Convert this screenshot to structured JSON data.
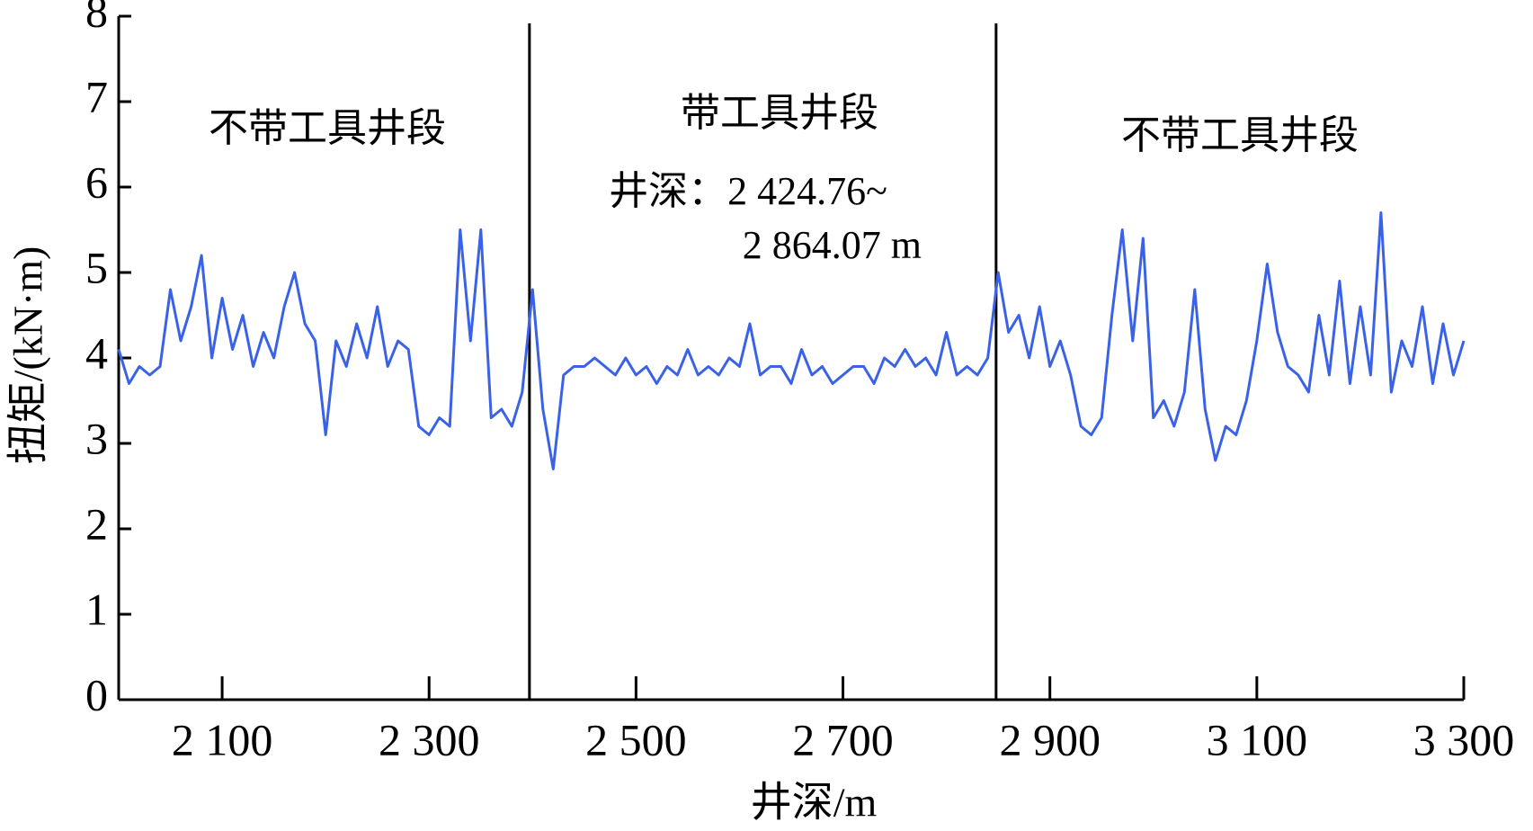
{
  "chart_data": {
    "type": "line",
    "xlabel": "井深/m",
    "ylabel": "扭矩/(kN·m)",
    "annotations": [
      "不带工具井段",
      "带工具井段",
      "井深：2 424.76~",
      "2 864.07 m",
      "不带工具井段"
    ],
    "dividers": [
      2397,
      2848
    ],
    "xlim": [
      2000,
      3300
    ],
    "ylim": [
      0,
      8
    ],
    "xticks": [
      {
        "value": 2100,
        "label": "2 100"
      },
      {
        "value": 2300,
        "label": "2 300"
      },
      {
        "value": 2500,
        "label": "2 500"
      },
      {
        "value": 2700,
        "label": "2 700"
      },
      {
        "value": 2900,
        "label": "2 900"
      },
      {
        "value": 3100,
        "label": "3 100"
      },
      {
        "value": 3300,
        "label": "3 300"
      }
    ],
    "yticks": [
      0,
      1,
      2,
      3,
      4,
      5,
      6,
      7,
      8
    ],
    "x": [
      2000,
      2010,
      2020,
      2030,
      2040,
      2050,
      2060,
      2070,
      2080,
      2090,
      2100,
      2110,
      2120,
      2130,
      2140,
      2150,
      2160,
      2170,
      2180,
      2190,
      2200,
      2210,
      2220,
      2230,
      2240,
      2250,
      2260,
      2270,
      2280,
      2290,
      2300,
      2310,
      2320,
      2330,
      2340,
      2350,
      2360,
      2370,
      2380,
      2390,
      2400,
      2410,
      2420,
      2430,
      2440,
      2450,
      2460,
      2470,
      2480,
      2490,
      2500,
      2510,
      2520,
      2530,
      2540,
      2550,
      2560,
      2570,
      2580,
      2590,
      2600,
      2610,
      2620,
      2630,
      2640,
      2650,
      2660,
      2670,
      2680,
      2690,
      2700,
      2710,
      2720,
      2730,
      2740,
      2750,
      2760,
      2770,
      2780,
      2790,
      2800,
      2810,
      2820,
      2830,
      2840,
      2850,
      2860,
      2870,
      2880,
      2890,
      2900,
      2910,
      2920,
      2930,
      2940,
      2950,
      2960,
      2970,
      2980,
      2990,
      3000,
      3010,
      3020,
      3030,
      3040,
      3050,
      3060,
      3070,
      3080,
      3090,
      3100,
      3110,
      3120,
      3130,
      3140,
      3150,
      3160,
      3170,
      3180,
      3190,
      3200,
      3210,
      3220,
      3230,
      3240,
      3250,
      3260,
      3270,
      3280,
      3290,
      3300
    ],
    "series": [
      {
        "color": "#3a62e8",
        "values": [
          4.1,
          3.7,
          3.9,
          3.8,
          3.9,
          4.8,
          4.2,
          4.6,
          5.2,
          4.0,
          4.7,
          4.1,
          4.5,
          3.9,
          4.3,
          4.0,
          4.6,
          5.0,
          4.4,
          4.2,
          3.1,
          4.2,
          3.9,
          4.4,
          4.0,
          4.6,
          3.9,
          4.2,
          4.1,
          3.2,
          3.1,
          3.3,
          3.2,
          5.5,
          4.2,
          5.5,
          3.3,
          3.4,
          3.2,
          3.6,
          4.8,
          3.4,
          2.7,
          3.8,
          3.9,
          3.9,
          4.0,
          3.9,
          3.8,
          4.0,
          3.8,
          3.9,
          3.7,
          3.9,
          3.8,
          4.1,
          3.8,
          3.9,
          3.8,
          4.0,
          3.9,
          4.4,
          3.8,
          3.9,
          3.9,
          3.7,
          4.1,
          3.8,
          3.9,
          3.7,
          3.8,
          3.9,
          3.9,
          3.7,
          4.0,
          3.9,
          4.1,
          3.9,
          4.0,
          3.8,
          4.3,
          3.8,
          3.9,
          3.8,
          4.0,
          5.0,
          4.3,
          4.5,
          4.0,
          4.6,
          3.9,
          4.2,
          3.8,
          3.2,
          3.1,
          3.3,
          4.5,
          5.5,
          4.2,
          5.4,
          3.3,
          3.5,
          3.2,
          3.6,
          4.8,
          3.4,
          2.8,
          3.2,
          3.1,
          3.5,
          4.2,
          5.1,
          4.3,
          3.9,
          3.8,
          3.6,
          4.5,
          3.8,
          4.9,
          3.7,
          4.6,
          3.8,
          5.7,
          3.6,
          4.2,
          3.9,
          4.6,
          3.7,
          4.4,
          3.8,
          4.2
        ]
      }
    ]
  }
}
